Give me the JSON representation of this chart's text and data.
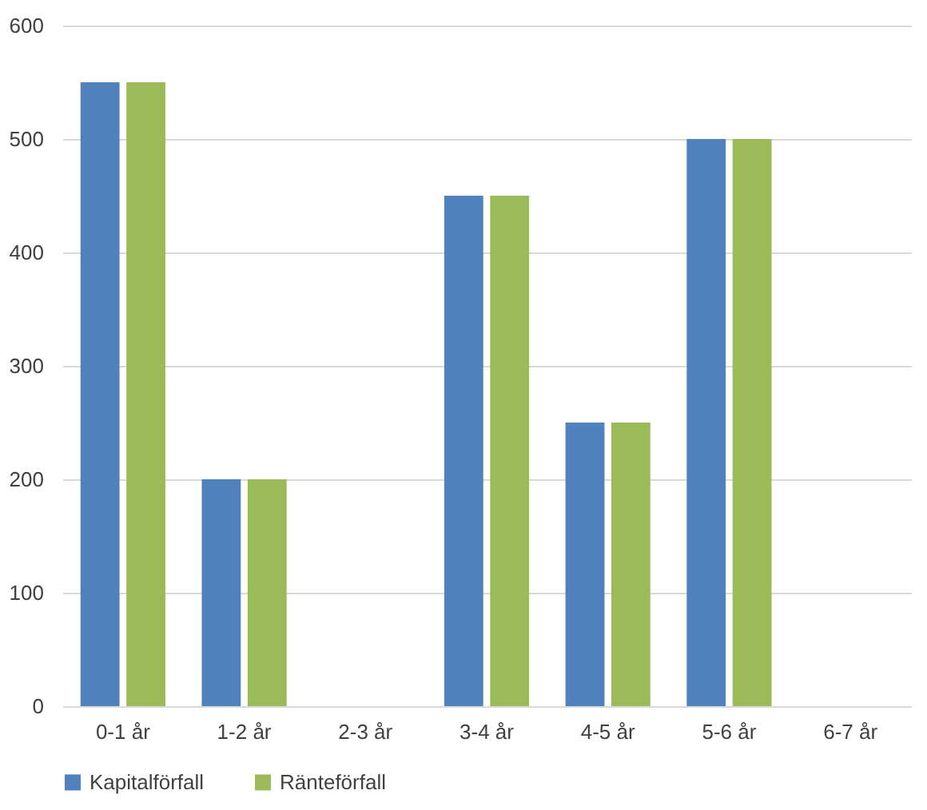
{
  "chart_data": {
    "type": "bar",
    "categories": [
      "0-1 år",
      "1-2 år",
      "2-3 år",
      "3-4 år",
      "4-5 år",
      "5-6 år",
      "6-7 år"
    ],
    "series": [
      {
        "name": "Kapitalförfall",
        "color": "#4f81bd",
        "values": [
          550,
          200,
          0,
          450,
          250,
          500,
          0
        ]
      },
      {
        "name": "Ränteförfall",
        "color": "#9bbb59",
        "values": [
          550,
          200,
          0,
          450,
          250,
          500,
          0
        ]
      }
    ],
    "ylim": [
      0,
      600
    ],
    "yticks": [
      0,
      100,
      200,
      300,
      400,
      500,
      600
    ],
    "grid": "y",
    "legend": "bottom"
  }
}
